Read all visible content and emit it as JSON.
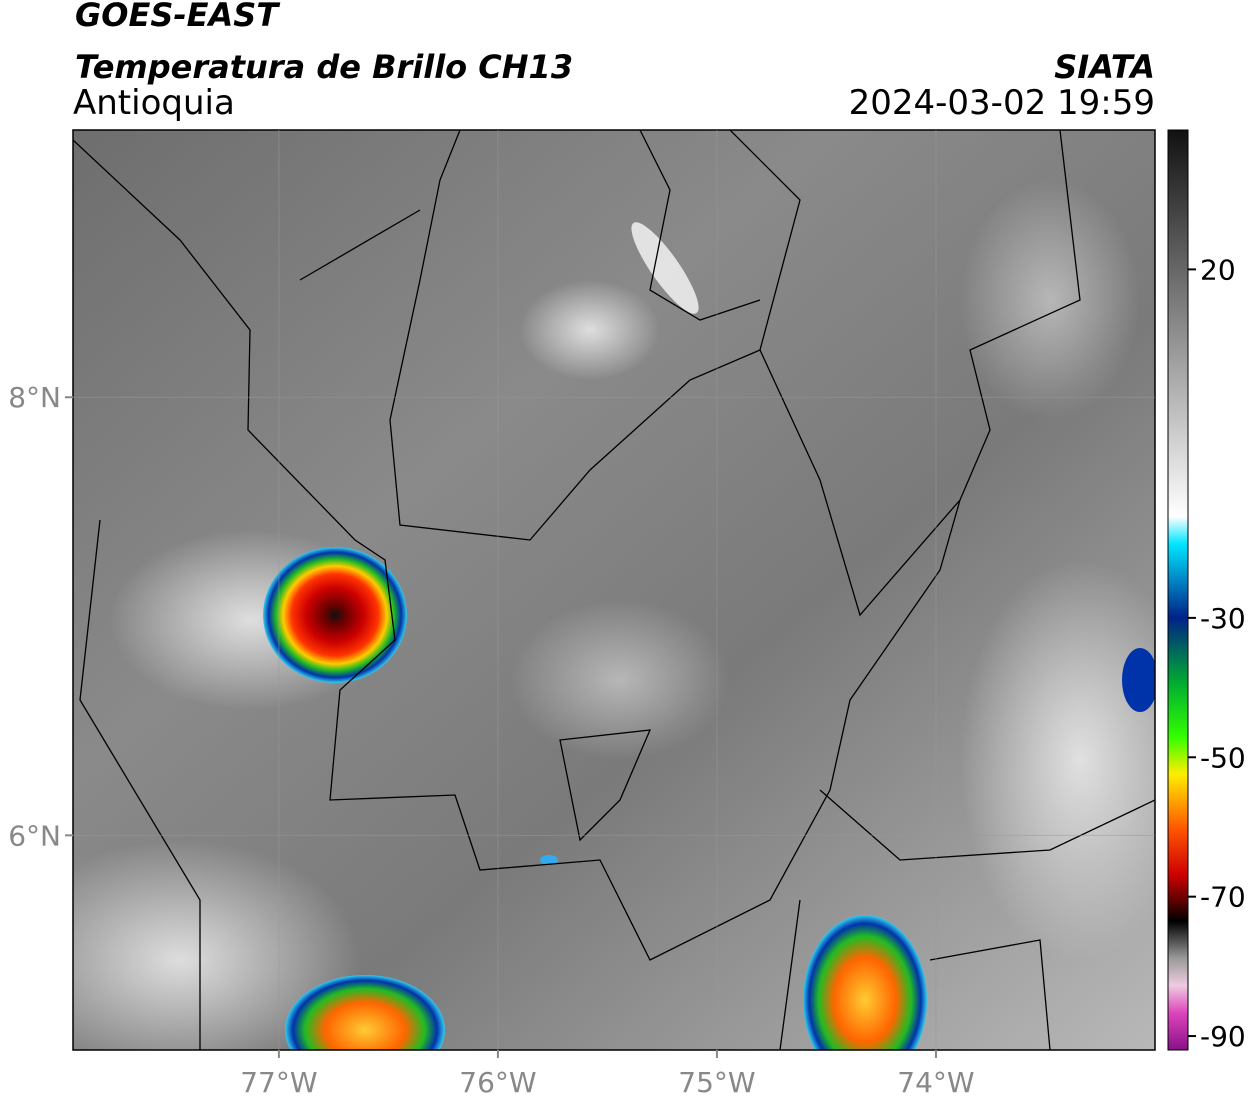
{
  "header": {
    "title": "GOES-EAST",
    "subtitle": "Temperatura de Brillo CH13",
    "region": "Antioquia",
    "source": "SIATA",
    "datetime": "2024-03-02 19:59"
  },
  "map": {
    "xlim": [
      -77.94,
      -73
    ],
    "ylim": [
      5.02,
      9.22
    ],
    "xticks": [
      {
        "value": -77,
        "label": "77°W"
      },
      {
        "value": -76,
        "label": "76°W"
      },
      {
        "value": -75,
        "label": "75°W"
      },
      {
        "value": -74,
        "label": "74°W"
      }
    ],
    "yticks": [
      {
        "value": 6,
        "label": "6°N"
      },
      {
        "value": 8,
        "label": "8°N"
      }
    ],
    "grid": true
  },
  "colorbar": {
    "lim": [
      -92,
      40
    ],
    "ticks": [
      20,
      -30,
      -50,
      -70,
      -90
    ]
  }
}
